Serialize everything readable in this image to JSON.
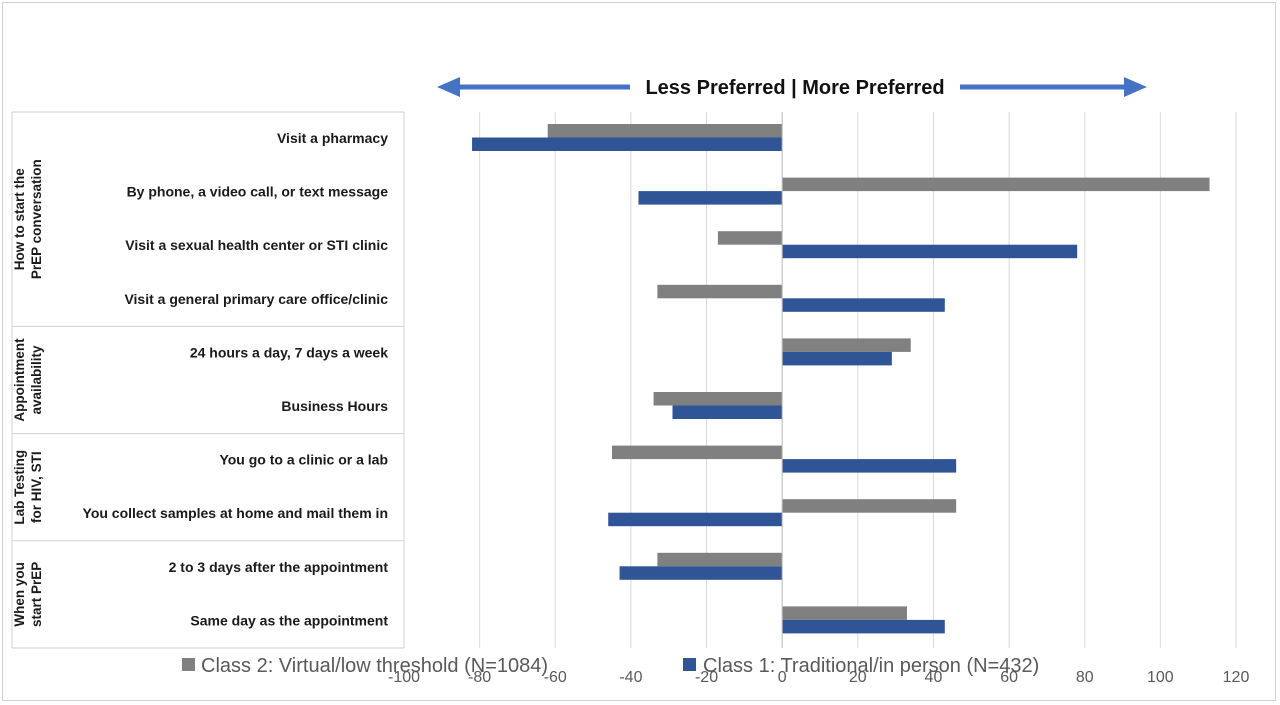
{
  "chart_data": {
    "type": "bar",
    "orientation": "horizontal",
    "banner": "Less Preferred | More Preferred",
    "groups": [
      {
        "label": "How to start the PrEP conversation",
        "categories": [
          0,
          1,
          2,
          3
        ]
      },
      {
        "label": "Appointment availability",
        "categories": [
          4,
          5
        ]
      },
      {
        "label": "Lab Testing for HIV, STI",
        "categories": [
          6,
          7
        ]
      },
      {
        "label": "When you start PrEP",
        "categories": [
          8,
          9
        ]
      }
    ],
    "categories": [
      "Visit a pharmacy",
      "By phone, a video call, or text message",
      "Visit a sexual health center or STI clinic",
      "Visit a general primary care office/clinic",
      "24 hours a day, 7 days a week",
      "Business Hours",
      "You go to a clinic or a lab",
      "You collect samples at home and mail them in",
      "2 to 3 days after the appointment",
      "Same day as the appointment"
    ],
    "series": [
      {
        "name": "Class 2: Virtual/low threshold (N=1084)",
        "color": "#808080",
        "values": [
          -62,
          113,
          -17,
          -33,
          34,
          -34,
          -45,
          46,
          -33,
          33
        ]
      },
      {
        "name": "Class 1: Traditional/in person (N=432)",
        "color": "#2f5597",
        "values": [
          -82,
          -38,
          78,
          43,
          29,
          -29,
          46,
          -46,
          -43,
          43
        ]
      }
    ],
    "xlim": [
      -100,
      120
    ],
    "xticks": [
      "-100",
      "-80",
      "-60",
      "-40",
      "-20",
      "0",
      "20",
      "40",
      "60",
      "80",
      "100",
      "120"
    ],
    "grid": true,
    "legend_position": "bottom",
    "arrow_color": "#4472c4"
  }
}
